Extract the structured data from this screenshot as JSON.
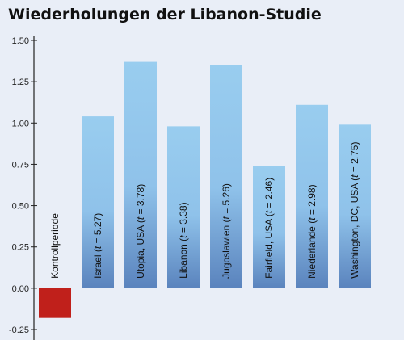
{
  "chart_data": {
    "type": "bar",
    "title": "Wiederholungen der Libanon-Studie",
    "xlabel": "",
    "ylabel": "",
    "ylim": [
      -0.25,
      1.5
    ],
    "yticks": [
      "1.50",
      "1.25",
      "1.00",
      "0.75",
      "0.50",
      "0.25",
      "0.00",
      "-0.25"
    ],
    "ytick_values": [
      1.5,
      1.25,
      1.0,
      0.75,
      0.5,
      0.25,
      0.0,
      -0.25
    ],
    "grid": false,
    "legend": "none",
    "categories": [
      {
        "parts": [
          "Kontrollperiode"
        ]
      },
      {
        "parts": [
          "Israel (",
          "t",
          " = 5.27)"
        ]
      },
      {
        "parts": [
          "Utopia, USA (",
          "t",
          " = 3.78)"
        ]
      },
      {
        "parts": [
          "Libanon (",
          "t",
          " = 3.38)"
        ]
      },
      {
        "parts": [
          "Jugoslawien (",
          "t",
          " = 5.26)"
        ]
      },
      {
        "parts": [
          "Fairfield, USA (",
          "t",
          " = 2.46)"
        ]
      },
      {
        "parts": [
          "Niederlande (",
          "t",
          " = 2.98)"
        ]
      },
      {
        "parts": [
          "Washington, DC, USA (",
          "t",
          " = 2.75)"
        ]
      }
    ],
    "values": [
      -0.18,
      1.04,
      1.37,
      0.98,
      1.35,
      0.74,
      1.11,
      0.99
    ],
    "colors": {
      "negative": "#c0201b",
      "positive_top": "#99cdef",
      "positive_bottom": "#5a83bd"
    }
  }
}
